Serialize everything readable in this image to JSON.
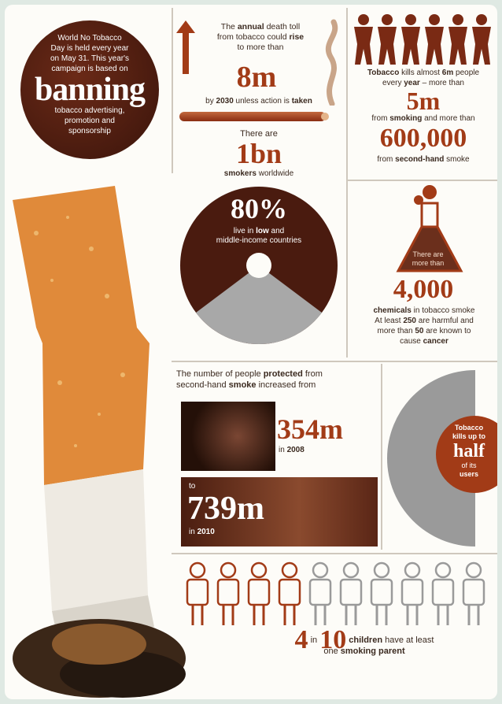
{
  "colors": {
    "rust": "#a23b17",
    "dark_brown": "#3a1c12",
    "panel_bg": "#fdfcf8",
    "filter": "#e58a3c",
    "grey": "#9a9a9a"
  },
  "intro": {
    "line1": "World No Tobacco",
    "line2": "Day is held every year",
    "line3": "on May 31. This year's",
    "line4": "campaign is based on",
    "big": "banning",
    "sub1": "tobacco advertising,",
    "sub2": "promotion and",
    "sub3": "sponsorship"
  },
  "deaths": {
    "l1a": "The ",
    "l1b": "annual",
    "l1c": " death toll",
    "l2a": "from tobacco could ",
    "l2b": "rise",
    "l3": "to more than",
    "big": "8m",
    "l4a": "by ",
    "l4b": "2030",
    "l4c": " unless action is ",
    "l4d": "taken"
  },
  "kills": {
    "l1a": "Tobacco",
    "l1b": " kills almost ",
    "l1c": "6m",
    "l1d": " people",
    "l2a": "every ",
    "l2b": "year",
    "l2c": " – more than",
    "big1": "5m",
    "l3a": "from ",
    "l3b": "smoking",
    "l3c": " and more than",
    "big2": "600,000",
    "l4a": "from ",
    "l4b": "second-hand",
    "l4c": " smoke"
  },
  "smokers": {
    "l1": "There are",
    "big": "1bn",
    "l2a": "smokers",
    "l2b": " worldwide"
  },
  "pie": {
    "big": "80%",
    "l1": "live in ",
    "l1b": "low",
    "l1c": " and",
    "l2": "middle-income countries"
  },
  "chemicals": {
    "flask1": "There are",
    "flask2": "more than",
    "big": "4,000",
    "l1a": "chemicals",
    "l1b": " in tobacco smoke",
    "l2a": "At least ",
    "l2b": "250",
    "l2c": " are harmful and",
    "l3a": "more than ",
    "l3b": "50",
    "l3c": " are known to",
    "l4a": "cause ",
    "l4b": "cancer"
  },
  "protected": {
    "l1a": "The number of people ",
    "l1b": "protected",
    "l1c": " from",
    "l2a": "second-hand ",
    "l2b": "smoke",
    "l2c": " increased from",
    "v1": "354m",
    "y1a": "in ",
    "y1b": "2008",
    "to": "to",
    "v2": "739m",
    "y2a": "in ",
    "y2b": "2010"
  },
  "half": {
    "l1": "Tobacco",
    "l2": "kills up to",
    "big": "half",
    "l3": "of its",
    "l4": "users"
  },
  "children": {
    "big1": "4",
    "in": "in",
    "big2": "10",
    "l1a": "children",
    "l1b": " have at least",
    "l2a": "one ",
    "l2b": "smoking parent",
    "filled_count": 4,
    "total_count": 10
  }
}
